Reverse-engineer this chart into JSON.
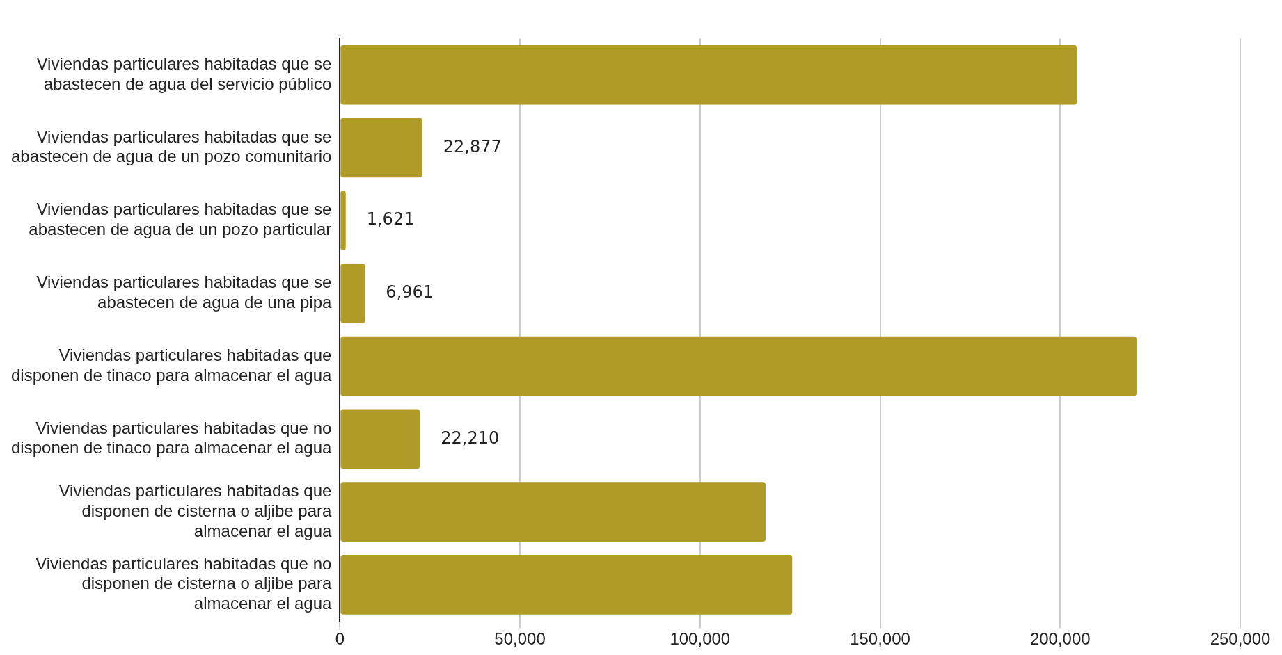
{
  "chart_data": {
    "type": "bar",
    "orientation": "horizontal",
    "categories": [
      "Viviendas particulares habitadas que se\nabastecen de agua del servicio público",
      "Viviendas particulares habitadas que se\nabastecen de agua de un pozo comunitario",
      "Viviendas particulares habitadas que se\nabastecen de agua de un pozo particular",
      "Viviendas particulares habitadas que se\nabastecen de agua de una pipa",
      "Viviendas particulares habitadas que\ndisponen de tinaco para almacenar el agua",
      "Viviendas particulares habitadas que no\ndisponen de tinaco para almacenar el agua",
      "Viviendas particulares habitadas que\ndisponen de cisterna o aljibe para\nalmacenar el agua",
      "Viviendas particulares habitadas que no\ndisponen de cisterna o aljibe para\nalmacenar el agua"
    ],
    "values": [
      204600,
      22877,
      1621,
      6961,
      221200,
      22210,
      118200,
      125600
    ],
    "value_labels": [
      null,
      "22,877",
      "1,621",
      "6,961",
      null,
      "22,210",
      null,
      null
    ],
    "color": "#b09a28",
    "xlim": [
      0,
      250000
    ],
    "xticks": [
      {
        "value": 0,
        "label": "0"
      },
      {
        "value": 50000,
        "label": "50,000"
      },
      {
        "value": 100000,
        "label": "100,000"
      },
      {
        "value": 150000,
        "label": "150,000"
      },
      {
        "value": 200000,
        "label": "200,000"
      },
      {
        "value": 250000,
        "label": "250,000"
      }
    ],
    "grid": "x",
    "legend": false
  }
}
